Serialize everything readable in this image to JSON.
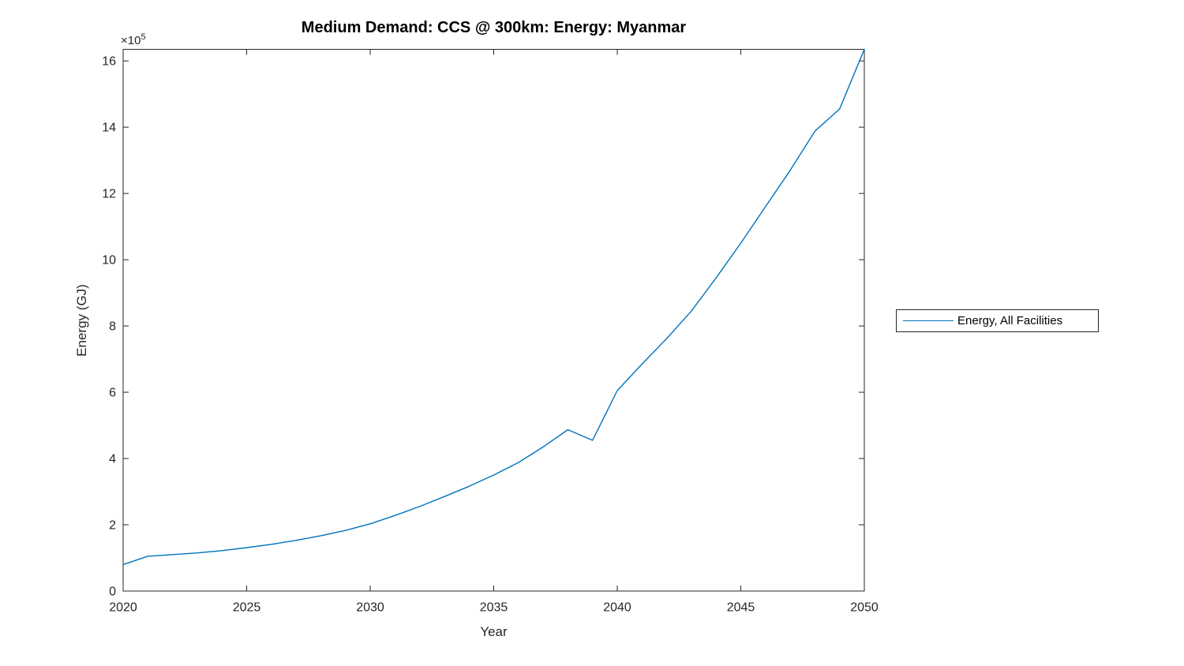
{
  "chart_data": {
    "type": "line",
    "title": "Medium Demand: CCS @ 300km: Energy: Myanmar",
    "xlabel": "Year",
    "ylabel": "Energy (GJ)",
    "y_multiplier_base": "×10",
    "y_multiplier_exp": "5",
    "y_unit_note": "y tick values are in units of 10^5 GJ",
    "xlim": [
      2020,
      2050
    ],
    "ylim": [
      0,
      16.35
    ],
    "x_ticks": [
      2020,
      2025,
      2030,
      2035,
      2040,
      2045,
      2050
    ],
    "y_ticks": [
      0,
      2,
      4,
      6,
      8,
      10,
      12,
      14,
      16
    ],
    "grid": false,
    "box": true,
    "legend": {
      "position": "right-outside",
      "entries": [
        {
          "label": "Energy, All Facilities",
          "color": "#0072BD"
        }
      ]
    },
    "series": [
      {
        "name": "Energy, All Facilities",
        "color": "#0072BD",
        "x": [
          2020,
          2021,
          2022,
          2023,
          2024,
          2025,
          2026,
          2027,
          2028,
          2029,
          2030,
          2031,
          2032,
          2033,
          2034,
          2035,
          2036,
          2037,
          2038,
          2039,
          2040,
          2041,
          2042,
          2043,
          2044,
          2045,
          2046,
          2047,
          2048,
          2049,
          2050
        ],
        "values_e5": [
          0.8,
          1.05,
          1.1,
          1.15,
          1.22,
          1.31,
          1.41,
          1.53,
          1.67,
          1.83,
          2.03,
          2.28,
          2.55,
          2.85,
          3.16,
          3.5,
          3.88,
          4.35,
          4.87,
          4.55,
          6.05,
          6.85,
          7.62,
          8.45,
          9.45,
          10.5,
          11.6,
          12.7,
          13.88,
          14.55,
          16.35
        ]
      }
    ],
    "colors": {
      "line": "#0072BD",
      "axis": "#262626",
      "title_text": "#000000",
      "background": "#ffffff"
    }
  }
}
